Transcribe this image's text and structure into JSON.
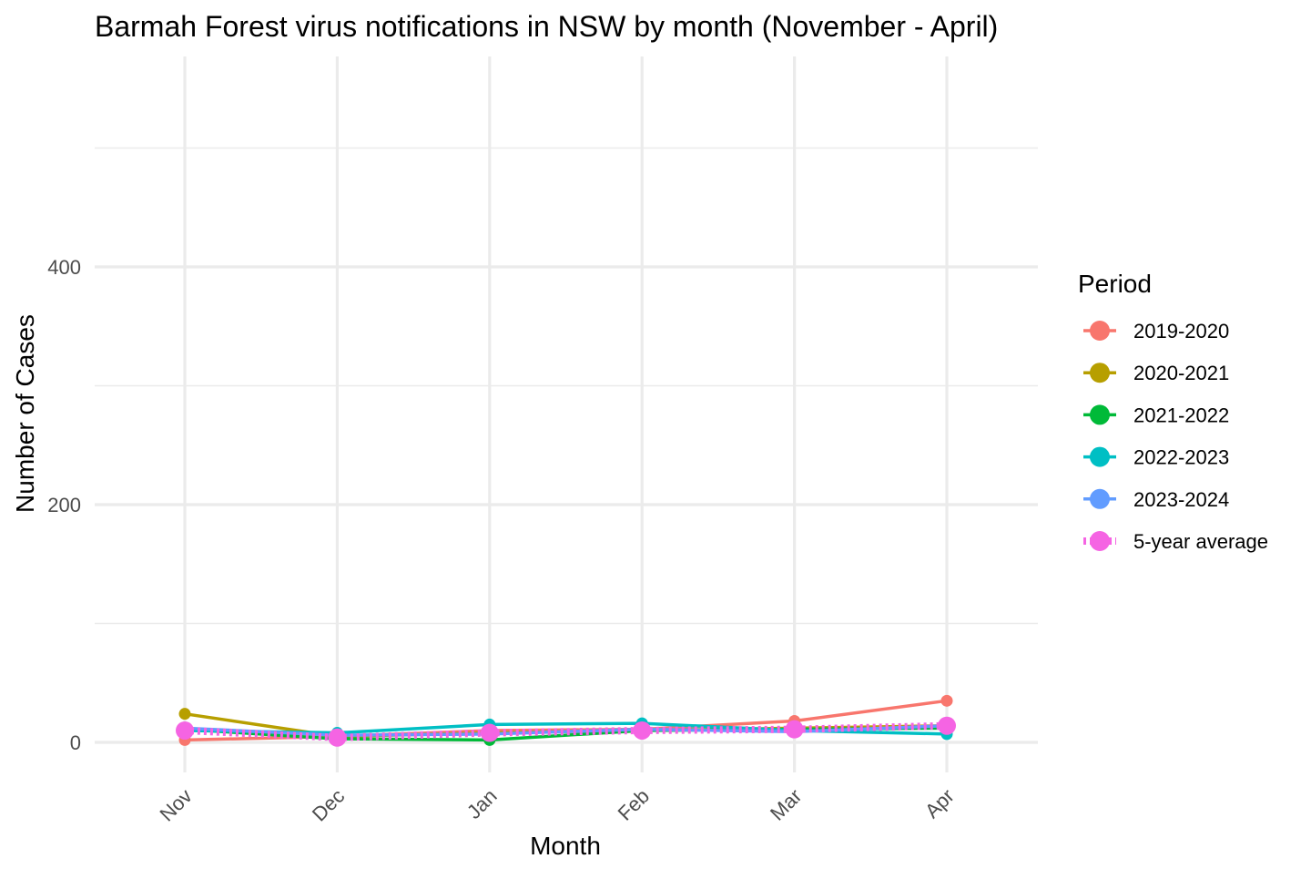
{
  "chart_data": {
    "type": "line",
    "title": "Barmah Forest virus notifications in NSW by month (November - April)",
    "xlabel": "Month",
    "ylabel": "Number of Cases",
    "categories": [
      "Nov",
      "Dec",
      "Jan",
      "Feb",
      "Mar",
      "Apr"
    ],
    "y_ticks": [
      0,
      200,
      400
    ],
    "ylim": [
      -45,
      580
    ],
    "grid": true,
    "legend": {
      "title": "Period",
      "position": "right"
    },
    "series": [
      {
        "name": "2019-2020",
        "color": "#F8766D",
        "line": "solid",
        "values": [
          2,
          5,
          10,
          11,
          18,
          35
        ]
      },
      {
        "name": "2020-2021",
        "color": "#B79F00",
        "line": "solid",
        "values": [
          24,
          5,
          8,
          10,
          12,
          14
        ]
      },
      {
        "name": "2021-2022",
        "color": "#00BA38",
        "line": "solid",
        "values": [
          11,
          3,
          2,
          10,
          11,
          12
        ]
      },
      {
        "name": "2022-2023",
        "color": "#00BFC4",
        "line": "solid",
        "values": [
          10,
          8,
          15,
          16,
          10,
          7
        ]
      },
      {
        "name": "2023-2024",
        "color": "#619CFF",
        "line": "solid",
        "values": [
          12,
          6,
          7,
          11,
          9,
          14
        ]
      },
      {
        "name": "5-year average",
        "color": "#F564E3",
        "line": "dotted",
        "values": [
          10,
          4,
          8,
          10,
          11,
          14
        ]
      }
    ]
  }
}
